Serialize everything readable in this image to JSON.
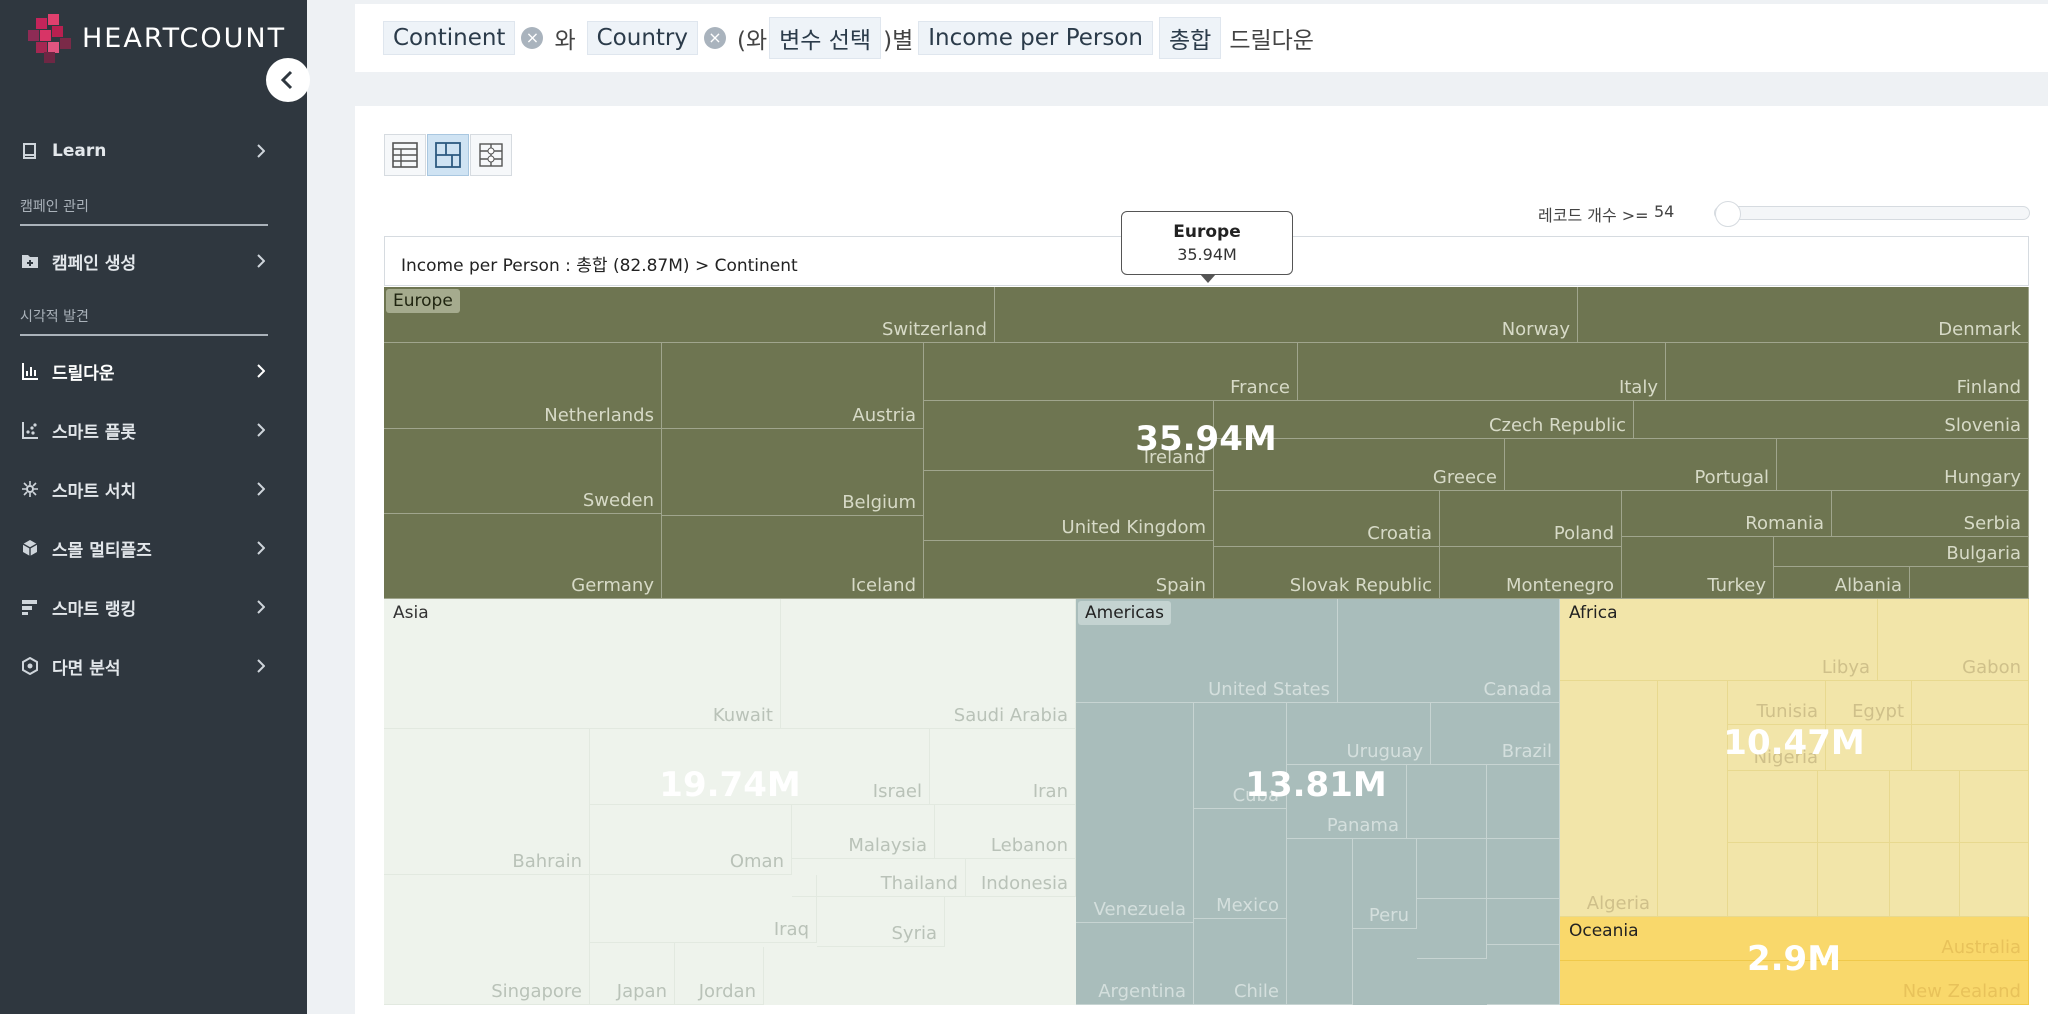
{
  "app": {
    "brand": "HEARTCOUNT",
    "colors": {
      "sidebar": "#2f373f",
      "europe": "#6e7551",
      "asia": "#eef3ec",
      "americas": "#a9bdbb",
      "africa": "#f2e5a9",
      "oceania": "#f9d86b"
    }
  },
  "sidebar": {
    "items": [
      {
        "label": "Learn",
        "icon": "book-icon"
      },
      {
        "section": "캠페인 관리"
      },
      {
        "label": "캠페인 생성",
        "icon": "folder-plus-icon"
      },
      {
        "section": "시각적 발견"
      },
      {
        "label": "드릴다운",
        "icon": "bar-chart-icon",
        "active": true
      },
      {
        "label": "스마트 플롯",
        "icon": "scatter-icon"
      },
      {
        "label": "스마트 서치",
        "icon": "sparkle-icon"
      },
      {
        "label": "스몰 멀티플즈",
        "icon": "cube-icon"
      },
      {
        "label": "스마트 랭킹",
        "icon": "ranking-icon"
      },
      {
        "label": "다면 분석",
        "icon": "hexagon-icon"
      }
    ]
  },
  "query": {
    "chip1": "Continent",
    "and": "와",
    "chip2": "Country",
    "paren_open": "(와",
    "chip3": "변수 선택",
    "paren_close": ")별",
    "chip4": "Income per Person",
    "chip5": "총합",
    "suffix": "드릴다운"
  },
  "controls": {
    "record_label": "레코드 개수 >=",
    "record_value": "54"
  },
  "breadcrumb": "Income per Person : 총합 (82.87M) > Continent",
  "tooltip": {
    "name": "Europe",
    "value": "35.94M"
  },
  "chart_data": {
    "type": "treemap",
    "title": "Income per Person : 총합 (82.87M) > Continent",
    "total": "82.87M",
    "groups": [
      {
        "name": "Europe",
        "value": "35.94M",
        "countries": [
          "Switzerland",
          "Norway",
          "Denmark",
          "Netherlands",
          "Austria",
          "France",
          "Italy",
          "Finland",
          "Czech Republic",
          "Slovenia",
          "Ireland",
          "Greece",
          "Portugal",
          "Hungary",
          "Sweden",
          "Belgium",
          "United Kingdom",
          "Croatia",
          "Poland",
          "Romania",
          "Serbia",
          "Bulgaria",
          "Germany",
          "Iceland",
          "Spain",
          "Slovak Republic",
          "Montenegro",
          "Turkey",
          "Albania"
        ]
      },
      {
        "name": "Asia",
        "value": "19.74M",
        "countries": [
          "Kuwait",
          "Saudi Arabia",
          "Israel",
          "Iran",
          "Malaysia",
          "Lebanon",
          "Bahrain",
          "Oman",
          "Thailand",
          "Indonesia",
          "Iraq",
          "Syria",
          "Singapore",
          "Japan",
          "Jordan"
        ]
      },
      {
        "name": "Americas",
        "value": "13.81M",
        "countries": [
          "United States",
          "Canada",
          "Uruguay",
          "Brazil",
          "Cuba",
          "Panama",
          "Venezuela",
          "Mexico",
          "Peru",
          "Argentina",
          "Chile"
        ]
      },
      {
        "name": "Africa",
        "value": "10.47M",
        "countries": [
          "Libya",
          "Gabon",
          "Tunisia",
          "Egypt",
          "Nigeria",
          "Algeria"
        ]
      },
      {
        "name": "Oceania",
        "value": "2.9M",
        "countries": [
          "Australia",
          "New Zealand"
        ]
      }
    ]
  }
}
